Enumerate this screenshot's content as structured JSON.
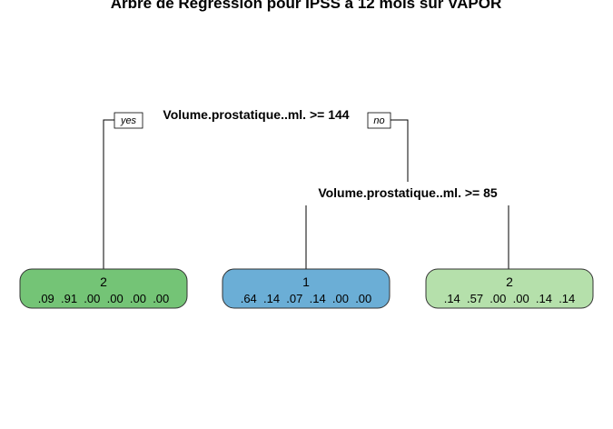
{
  "title": "Arbre de Régression pour IPSS à 12 mois sur VAPOR",
  "splits": {
    "root": "Volume.prostatique..ml. >= 144",
    "right": "Volume.prostatique..ml. >= 85"
  },
  "branch_tags": {
    "yes": "yes",
    "no": "no"
  },
  "leaves": [
    {
      "class_label": "2",
      "probs": ".09  .91  .00  .00  .00  .00",
      "color": "#74c476"
    },
    {
      "class_label": "1",
      "probs": ".64  .14  .07  .14  .00  .00",
      "color": "#6baed6"
    },
    {
      "class_label": "2",
      "probs": ".14  .57  .00  .00  .14  .14",
      "color": "#b5e0ab"
    }
  ]
}
